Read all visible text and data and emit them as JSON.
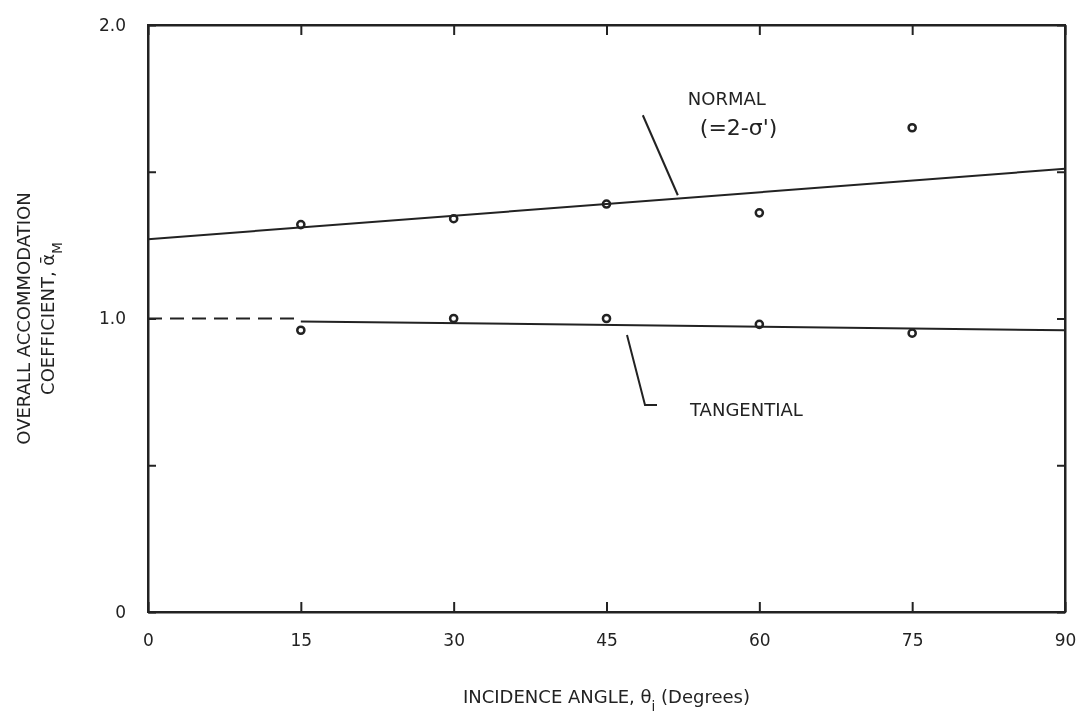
{
  "chart_data": {
    "type": "scatter",
    "xlabel": "INCIDENCE ANGLE, θ$_{i}$ (Degrees)",
    "ylabel": "OVERALL ACCOMMODATION\nCOEFFICIENT, ᾱ$_{M}$",
    "xlim": [
      0,
      90
    ],
    "ylim": [
      0,
      2
    ],
    "xticks": [
      0,
      15,
      30,
      45,
      60,
      75,
      90
    ],
    "yticks": [
      0,
      {
        "value": 0.5,
        "label": null
      },
      {
        "value": 1,
        "label": "1.0"
      },
      {
        "value": 1.5,
        "label": null
      },
      {
        "value": 2,
        "label": "2.0"
      }
    ],
    "grid": false,
    "marker": "circle",
    "series": [
      {
        "color": "#222222",
        "x": [
          15,
          30,
          45,
          60,
          75
        ],
        "values": [
          1.32,
          1.34,
          1.39,
          1.36,
          1.65
        ]
      },
      {
        "type": "line",
        "color": "#222222",
        "line_style": "solid",
        "marker": "none",
        "x": [
          0,
          90
        ],
        "values": [
          1.27,
          1.51
        ]
      },
      {
        "color": "#222222",
        "x": [
          15,
          30,
          45,
          60,
          75
        ],
        "values": [
          0.96,
          1.0,
          1.0,
          0.98,
          0.95
        ]
      },
      {
        "type": "line",
        "color": "#222222",
        "line_style": "dashed",
        "marker": "none",
        "x": [
          0,
          15
        ],
        "values": [
          1.0,
          1.0
        ]
      },
      {
        "type": "line",
        "color": "#222222",
        "line_style": "solid",
        "marker": "none",
        "x": [
          15,
          90
        ],
        "values": [
          0.99,
          0.96
        ]
      }
    ],
    "annotations": [
      {
        "text": "NORMAL\n(=2-σ')",
        "x": 52,
        "y": 1.42
      },
      "TANGENTIAL"
    ]
  }
}
